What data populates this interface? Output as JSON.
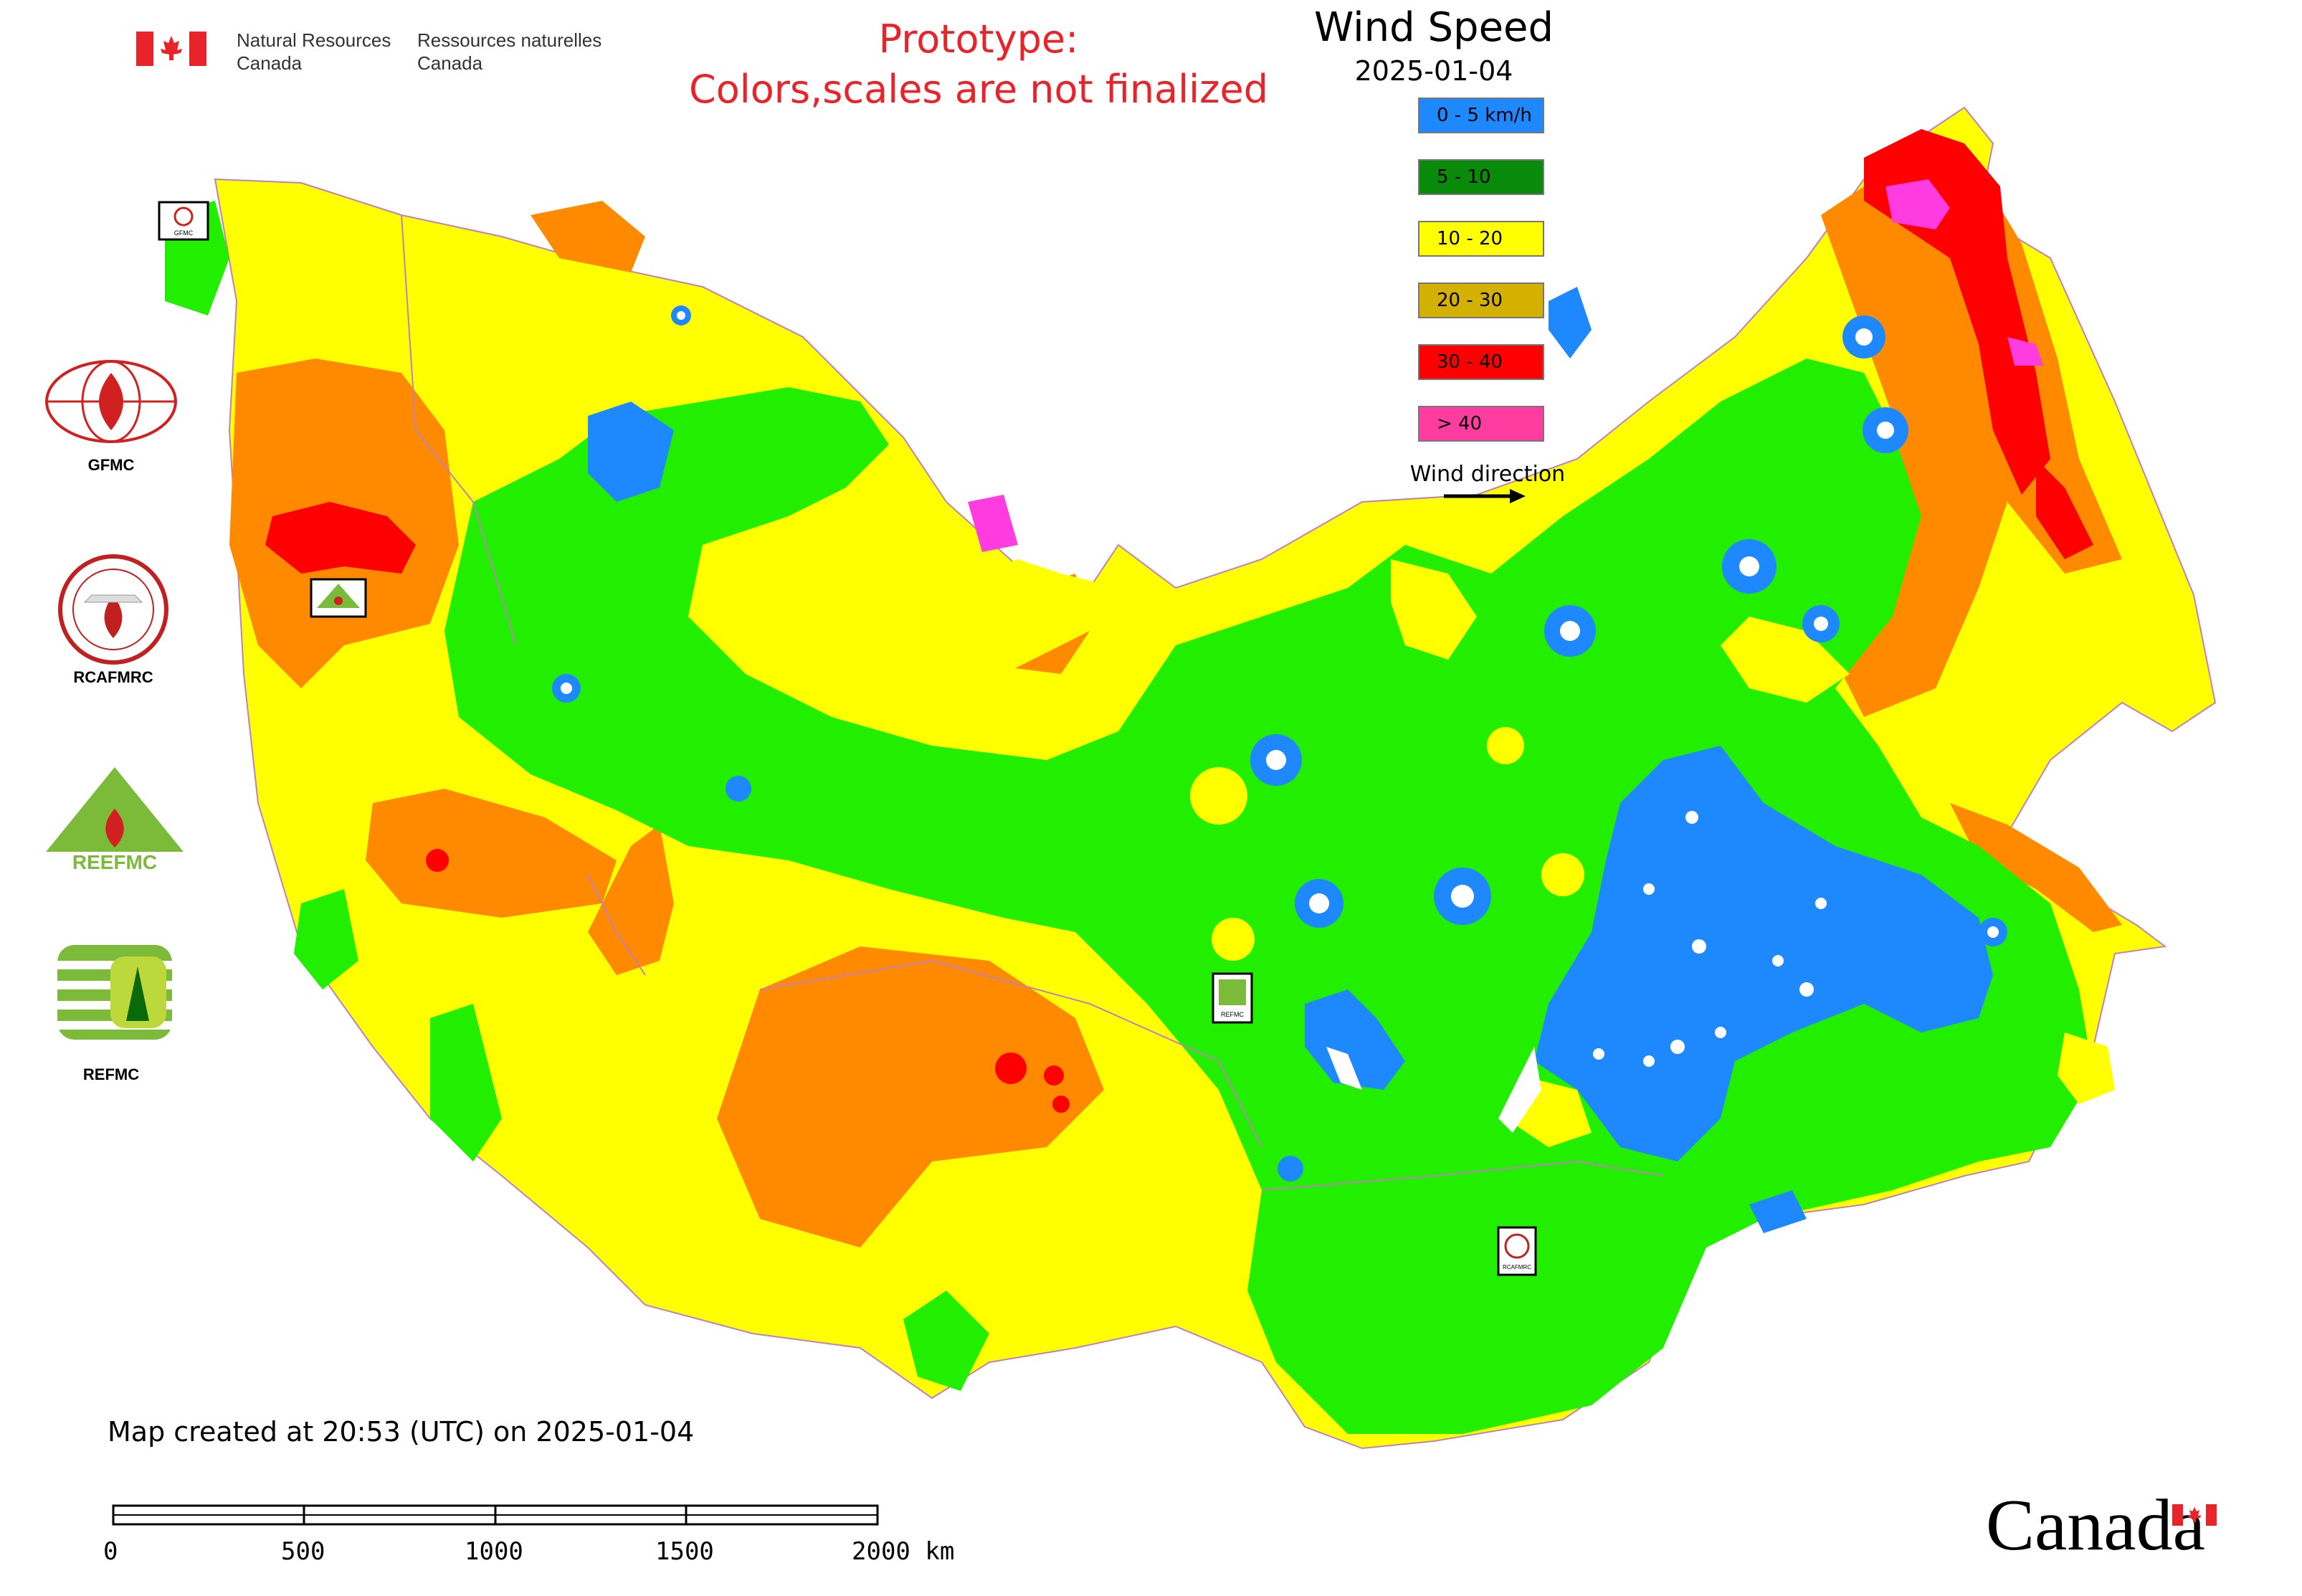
{
  "header": {
    "department_en_line1": "Natural Resources",
    "department_en_line2": "Canada",
    "department_fr_line1": "Ressources naturelles",
    "department_fr_line2": "Canada",
    "prototype_line1": "Prototype:",
    "prototype_line2": "Colors,scales are not finalized"
  },
  "legend": {
    "title": "Wind Speed",
    "date": "2025-01-04",
    "items": [
      {
        "label": "0 - 5 km/h",
        "color": "#1e88ff"
      },
      {
        "label": "5 - 10",
        "color": "#0a8a0a"
      },
      {
        "label": "10 - 20",
        "color": "#ffff00"
      },
      {
        "label": "20 - 30",
        "color": "#d4b000"
      },
      {
        "label": "30 - 40",
        "color": "#ff0000"
      },
      {
        "label": "> 40",
        "color": "#ff3ca0"
      }
    ],
    "wind_direction_label": "Wind direction"
  },
  "map_colors": {
    "calm": "#1e88ff",
    "light": "#22ee00",
    "moderate": "#ffff00",
    "fresh": "#ff8a00",
    "strong": "#ff0000",
    "gale": "#ff3ce0",
    "water": "#ffffff",
    "border": "#c080c0"
  },
  "side_logos": [
    {
      "label": "GFMC",
      "icon": "gfmc-logo-icon"
    },
    {
      "label": "RCAFMRC",
      "icon": "rcafmrc-logo-icon"
    },
    {
      "label": "REEFMC",
      "icon": "reefmc-logo-icon"
    },
    {
      "label": "REFMC",
      "icon": "refmc-logo-icon"
    }
  ],
  "map_markers": {
    "gfmc": "GFMC",
    "reefmc": "REEFMC",
    "refmc": "REFMC",
    "rcafmrc": "RCAFMRC"
  },
  "footer": {
    "created": "Map created at 20:53 (UTC) on 2025-01-04",
    "scale_labels": [
      "0",
      "500",
      "1000",
      "1500",
      "2000 km"
    ],
    "wordmark": "Canada"
  }
}
